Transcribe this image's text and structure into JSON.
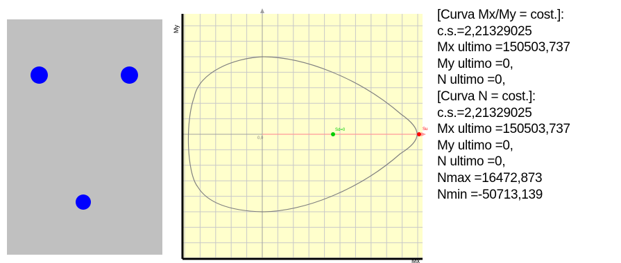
{
  "colors": {
    "section_fill": "#c0c0c0",
    "rebar": "#0000ff",
    "plot_background": "#ffffcc",
    "grid": "#c8c8c8",
    "axis": "#a0a0a0",
    "curve": "#808080",
    "load_line": "#ff9999",
    "point_design": "#00cc00",
    "point_ultimate": "#ff0000"
  },
  "section": {
    "rebars": [
      {
        "name": "rebar-top-left",
        "size": "large"
      },
      {
        "name": "rebar-top-right",
        "size": "large"
      },
      {
        "name": "rebar-bottom",
        "size": "medium"
      }
    ]
  },
  "chart_data": {
    "type": "line",
    "xlabel": "Mx",
    "ylabel": "My",
    "grid": true,
    "labels": {
      "origin": "0,0",
      "design_point": "Sd=0",
      "ultimate_point": "Su"
    },
    "series": [
      {
        "kind": "interaction-domain-curve"
      },
      {
        "kind": "load-line"
      }
    ]
  },
  "results": {
    "lines": [
      "[Curva Mx/My = cost.]:",
      "c.s.=2,21329025",
      "Mx ultimo =150503,737",
      "My ultimo =0,",
      "N  ultimo =0,",
      "[Curva N = cost.]:",
      "c.s.=2,21329025",
      "Mx ultimo =150503,737",
      "My ultimo =0,",
      "N  ultimo =0,",
      "Nmax =16472,873",
      "Nmin =-50713,139"
    ]
  }
}
